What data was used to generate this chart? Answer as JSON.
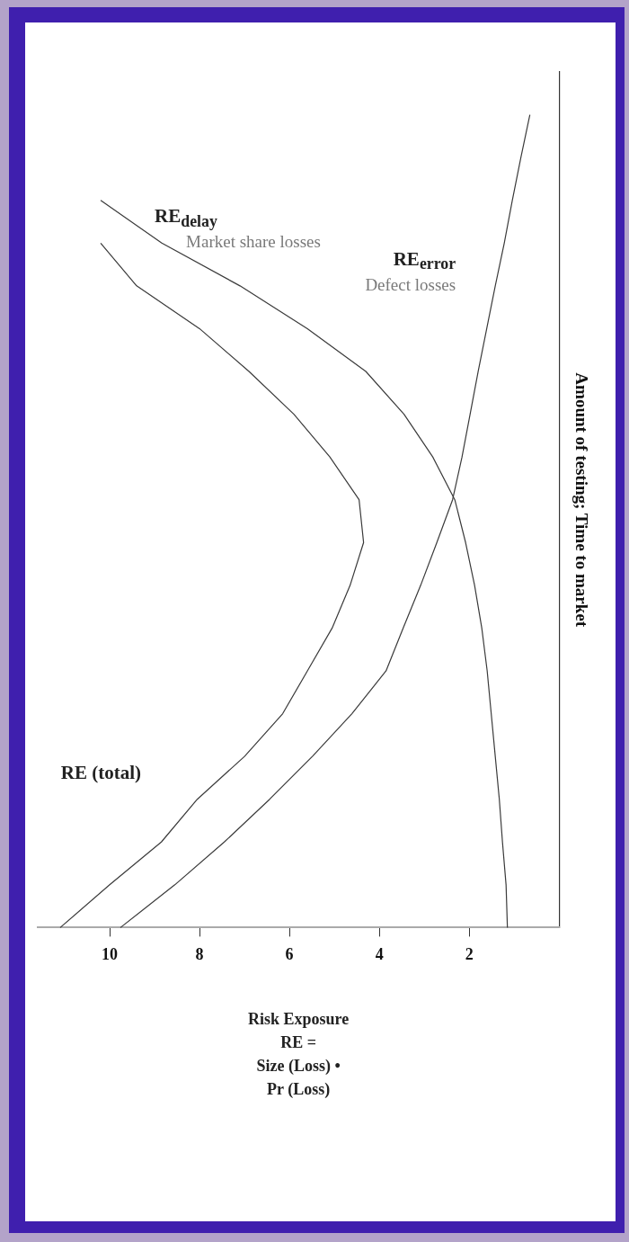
{
  "chart_data": {
    "type": "line",
    "orientation": "horizontal",
    "xlabel": "Risk Exposure\nRE =\nSize (Loss) •\nPr (Loss)",
    "ylabel": "Amount of testing; Time to market",
    "categories": [
      null,
      null,
      null,
      null,
      null,
      null,
      null,
      null,
      null,
      null,
      null,
      null,
      null,
      null,
      null,
      null,
      null,
      null,
      null,
      null,
      null
    ],
    "xlim": [
      11.6,
      0
    ],
    "xticks": [
      10,
      8,
      6,
      4,
      2
    ],
    "series": [
      {
        "name": "RE (total)",
        "color": "#3a3a3a",
        "values": [
          null,
          null,
          null,
          null,
          10.2,
          9.4,
          8.0,
          6.9,
          5.9,
          5.1,
          4.45,
          4.35,
          4.65,
          5.05,
          5.6,
          6.15,
          7.0,
          8.05,
          8.85,
          10.0,
          11.1
        ]
      },
      {
        "name": "RE$_{delay}$",
        "color": "#3a3a3a",
        "values": [
          null,
          null,
          null,
          10.2,
          8.84,
          7.1,
          5.6,
          4.3,
          3.45,
          2.81,
          2.32,
          2.08,
          1.88,
          1.72,
          1.6,
          1.51,
          1.42,
          1.33,
          1.26,
          1.18,
          1.15
        ]
      },
      {
        "name": "RE$_{error}$",
        "color": "#3a3a3a",
        "values": [
          null,
          0.65,
          0.85,
          1.04,
          1.22,
          1.42,
          1.61,
          1.8,
          1.98,
          2.16,
          2.37,
          2.72,
          3.08,
          3.47,
          3.85,
          4.61,
          5.49,
          6.44,
          7.45,
          8.55,
          9.76
        ]
      }
    ],
    "annotations": [
      "Market share losses",
      "Defect losses"
    ]
  }
}
